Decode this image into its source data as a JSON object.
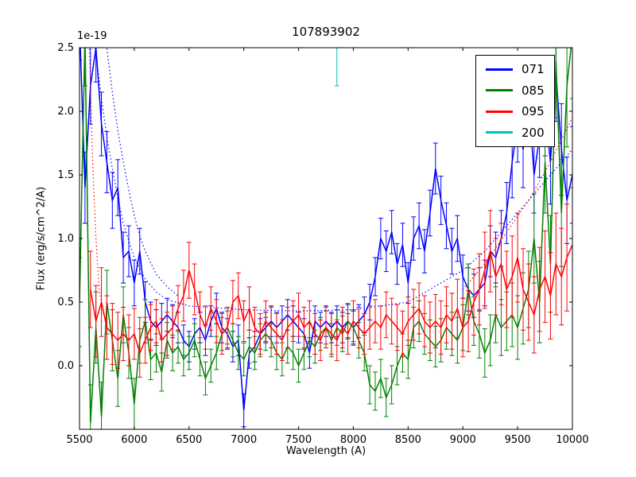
{
  "chart_data": {
    "type": "line",
    "title": "107893902",
    "xlabel": "Wavelength (A)",
    "ylabel": "Flux (erg/s/cm^2/A)",
    "y_offset_label": "1e-19",
    "xlim": [
      5500,
      10000
    ],
    "ylim": [
      -0.5,
      2.5
    ],
    "xticks": [
      5500,
      6000,
      6500,
      7000,
      7500,
      8000,
      8500,
      9000,
      9500,
      10000
    ],
    "yticks": [
      0.0,
      0.5,
      1.0,
      1.5,
      2.0,
      2.5
    ],
    "grid": false,
    "legend_position": "upper right",
    "series": [
      {
        "name": "071",
        "color": "#0000ff",
        "x_start": 5500,
        "x_step": 50,
        "values": [
          2.7,
          1.4,
          2.2,
          2.5,
          1.9,
          1.6,
          1.3,
          1.4,
          0.85,
          0.9,
          0.65,
          0.9,
          0.5,
          0.35,
          0.3,
          0.35,
          0.4,
          0.35,
          0.3,
          0.2,
          0.15,
          0.25,
          0.3,
          0.2,
          0.35,
          0.45,
          0.3,
          0.25,
          0.15,
          0.2,
          -0.35,
          0.1,
          0.15,
          0.25,
          0.3,
          0.35,
          0.3,
          0.35,
          0.4,
          0.35,
          0.3,
          0.25,
          0.1,
          0.35,
          0.3,
          0.35,
          0.3,
          0.35,
          0.3,
          0.35,
          0.3,
          0.35,
          0.4,
          0.5,
          0.7,
          1.0,
          0.9,
          1.05,
          0.8,
          0.95,
          0.65,
          1.0,
          1.1,
          0.9,
          1.2,
          1.55,
          1.3,
          1.1,
          0.9,
          1.0,
          0.7,
          0.6,
          0.55,
          0.6,
          0.65,
          0.9,
          0.85,
          1.0,
          1.2,
          1.6,
          1.9,
          1.7,
          2.1,
          1.5,
          1.8,
          2.0,
          1.6,
          2.3,
          1.7,
          1.3,
          1.5
        ],
        "errors": [
          0.3,
          0.28,
          0.3,
          0.27,
          0.25,
          0.24,
          0.22,
          0.22,
          0.2,
          0.2,
          0.18,
          0.18,
          0.16,
          0.15,
          0.14,
          0.14,
          0.13,
          0.13,
          0.12,
          0.12,
          0.12,
          0.12,
          0.12,
          0.12,
          0.12,
          0.12,
          0.12,
          0.12,
          0.12,
          0.12,
          0.13,
          0.12,
          0.12,
          0.12,
          0.12,
          0.12,
          0.12,
          0.12,
          0.12,
          0.12,
          0.12,
          0.12,
          0.12,
          0.12,
          0.12,
          0.12,
          0.12,
          0.12,
          0.12,
          0.13,
          0.13,
          0.13,
          0.14,
          0.14,
          0.15,
          0.16,
          0.16,
          0.17,
          0.16,
          0.17,
          0.16,
          0.17,
          0.18,
          0.17,
          0.18,
          0.2,
          0.19,
          0.18,
          0.18,
          0.18,
          0.17,
          0.17,
          0.17,
          0.17,
          0.18,
          0.2,
          0.2,
          0.22,
          0.24,
          0.28,
          0.3,
          0.3,
          0.32,
          0.3,
          0.32,
          0.35,
          0.33,
          0.38,
          0.36,
          0.34,
          0.38
        ]
      },
      {
        "name": "085",
        "color": "#008000",
        "x_start": 5500,
        "x_step": 50,
        "values": [
          0.5,
          2.6,
          -0.45,
          0.3,
          -0.4,
          0.5,
          0.2,
          -0.1,
          0.4,
          0.1,
          -0.3,
          0.2,
          0.35,
          0.05,
          0.1,
          -0.05,
          0.2,
          0.1,
          0.15,
          0.05,
          0.1,
          0.2,
          0.05,
          -0.1,
          0.0,
          0.1,
          0.25,
          0.3,
          0.2,
          0.1,
          0.05,
          0.15,
          0.1,
          0.2,
          0.25,
          0.2,
          0.1,
          0.05,
          0.15,
          0.1,
          0.0,
          0.1,
          0.2,
          0.15,
          0.25,
          0.3,
          0.2,
          0.3,
          0.25,
          0.35,
          0.3,
          0.2,
          0.1,
          -0.15,
          -0.2,
          -0.1,
          -0.25,
          -0.15,
          0.0,
          0.1,
          0.05,
          0.3,
          0.35,
          0.25,
          0.2,
          0.15,
          0.2,
          0.3,
          0.25,
          0.2,
          0.3,
          0.6,
          0.35,
          0.25,
          0.1,
          0.2,
          0.4,
          0.3,
          0.35,
          0.4,
          0.3,
          0.45,
          0.6,
          1.0,
          0.5,
          1.6,
          0.8,
          2.4,
          1.2,
          2.2,
          2.6
        ],
        "errors": [
          0.35,
          0.4,
          0.3,
          0.28,
          0.27,
          0.25,
          0.24,
          0.22,
          0.22,
          0.2,
          0.2,
          0.18,
          0.17,
          0.16,
          0.15,
          0.15,
          0.14,
          0.14,
          0.13,
          0.13,
          0.13,
          0.13,
          0.13,
          0.13,
          0.13,
          0.13,
          0.13,
          0.13,
          0.13,
          0.13,
          0.13,
          0.13,
          0.13,
          0.13,
          0.13,
          0.13,
          0.13,
          0.13,
          0.13,
          0.13,
          0.13,
          0.13,
          0.13,
          0.13,
          0.13,
          0.13,
          0.13,
          0.14,
          0.14,
          0.14,
          0.14,
          0.14,
          0.14,
          0.15,
          0.15,
          0.15,
          0.15,
          0.15,
          0.15,
          0.15,
          0.15,
          0.16,
          0.16,
          0.16,
          0.16,
          0.16,
          0.17,
          0.17,
          0.17,
          0.18,
          0.18,
          0.2,
          0.19,
          0.19,
          0.19,
          0.2,
          0.22,
          0.22,
          0.23,
          0.25,
          0.25,
          0.28,
          0.3,
          0.35,
          0.32,
          0.4,
          0.38,
          0.45,
          0.42,
          0.48,
          0.5
        ]
      },
      {
        "name": "095",
        "color": "#ff0000",
        "x_start": 5600,
        "x_step": 50,
        "values": [
          0.6,
          0.35,
          0.5,
          0.3,
          0.25,
          0.2,
          0.25,
          0.2,
          0.25,
          0.1,
          0.2,
          0.3,
          0.35,
          0.2,
          0.25,
          0.3,
          0.45,
          0.55,
          0.75,
          0.6,
          0.4,
          0.3,
          0.45,
          0.35,
          0.25,
          0.3,
          0.5,
          0.55,
          0.35,
          0.45,
          0.3,
          0.25,
          0.35,
          0.3,
          0.25,
          0.2,
          0.3,
          0.35,
          0.4,
          0.3,
          0.35,
          0.25,
          0.2,
          0.3,
          0.25,
          0.2,
          0.3,
          0.25,
          0.35,
          0.3,
          0.25,
          0.3,
          0.35,
          0.3,
          0.4,
          0.35,
          0.3,
          0.25,
          0.35,
          0.4,
          0.45,
          0.35,
          0.3,
          0.35,
          0.3,
          0.4,
          0.35,
          0.45,
          0.3,
          0.35,
          0.5,
          0.6,
          0.75,
          0.9,
          0.7,
          0.8,
          0.6,
          0.7,
          0.85,
          0.6,
          0.5,
          0.4,
          0.6,
          0.7,
          0.55,
          0.8,
          0.7,
          0.85,
          0.95
        ],
        "errors": [
          0.3,
          0.28,
          0.27,
          0.25,
          0.24,
          0.22,
          0.21,
          0.2,
          0.2,
          0.19,
          0.18,
          0.18,
          0.17,
          0.17,
          0.17,
          0.17,
          0.18,
          0.2,
          0.22,
          0.2,
          0.18,
          0.17,
          0.17,
          0.17,
          0.16,
          0.16,
          0.17,
          0.18,
          0.16,
          0.17,
          0.16,
          0.16,
          0.16,
          0.16,
          0.16,
          0.16,
          0.16,
          0.16,
          0.17,
          0.16,
          0.16,
          0.16,
          0.16,
          0.16,
          0.16,
          0.16,
          0.16,
          0.16,
          0.16,
          0.16,
          0.16,
          0.17,
          0.17,
          0.17,
          0.18,
          0.18,
          0.18,
          0.18,
          0.19,
          0.2,
          0.2,
          0.2,
          0.2,
          0.21,
          0.21,
          0.22,
          0.22,
          0.23,
          0.23,
          0.24,
          0.26,
          0.28,
          0.3,
          0.32,
          0.3,
          0.32,
          0.3,
          0.32,
          0.35,
          0.32,
          0.3,
          0.3,
          0.33,
          0.36,
          0.34,
          0.4,
          0.38,
          0.42,
          0.45
        ]
      },
      {
        "name": "200",
        "color": "#00bfbf",
        "x": [
          7850
        ],
        "values": [
          2.5
        ],
        "errors": [
          0.3
        ]
      }
    ],
    "dotted_curves": [
      {
        "color": "#0000ff",
        "x": [
          5600,
          5650,
          5700,
          5750,
          5800,
          5850,
          5900,
          5950,
          6000,
          6100,
          6200,
          6300,
          6500,
          7000,
          7500,
          8000,
          8500,
          9000,
          9200,
          9400,
          9600,
          9800,
          10000
        ],
        "y": [
          2.8,
          2.45,
          2.1,
          1.8,
          1.55,
          1.32,
          1.12,
          0.98,
          0.85,
          0.68,
          0.58,
          0.52,
          0.47,
          0.44,
          0.43,
          0.44,
          0.5,
          0.75,
          0.9,
          1.1,
          1.3,
          1.5,
          1.7
        ]
      },
      {
        "color": "#0000ff",
        "x": [
          5700,
          5750,
          5800,
          5850,
          5900,
          5950,
          6000,
          6050,
          6100,
          6200,
          6300,
          6400
        ],
        "y": [
          2.8,
          2.5,
          2.15,
          1.85,
          1.6,
          1.38,
          1.18,
          1.02,
          0.9,
          0.72,
          0.62,
          0.55
        ]
      },
      {
        "color": "#ff0000",
        "x": [
          5580,
          5600,
          5620,
          5650,
          5680,
          5720
        ],
        "y": [
          2.8,
          2.2,
          1.6,
          1.0,
          0.6,
          0.4
        ]
      },
      {
        "color": "#ff0000",
        "x": [
          9000,
          9200,
          9400,
          9600,
          9800,
          10000
        ],
        "y": [
          0.6,
          0.8,
          1.05,
          1.3,
          1.6,
          1.95
        ]
      }
    ]
  }
}
